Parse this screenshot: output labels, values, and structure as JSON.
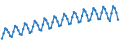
{
  "chart_data": {
    "type": "line",
    "values": [
      22,
      30,
      38,
      36,
      32,
      26,
      25,
      33,
      42,
      40,
      35,
      29,
      28,
      37,
      46,
      44,
      38,
      31,
      33,
      41,
      50,
      47,
      43,
      36,
      35,
      44,
      54,
      51,
      46,
      38,
      39,
      48,
      57,
      55,
      49,
      42,
      43,
      52,
      61,
      58,
      53,
      45,
      46,
      56,
      64,
      62,
      56,
      48,
      49,
      58,
      68,
      65,
      59,
      50,
      52,
      61,
      70,
      67,
      61,
      53,
      53,
      63,
      72,
      69,
      62,
      54,
      50,
      62,
      73,
      70,
      63,
      52
    ],
    "color": "#2b7bc0",
    "marker": "circle",
    "ylim": [
      15,
      80
    ],
    "tick_labels": false,
    "grid": false
  }
}
